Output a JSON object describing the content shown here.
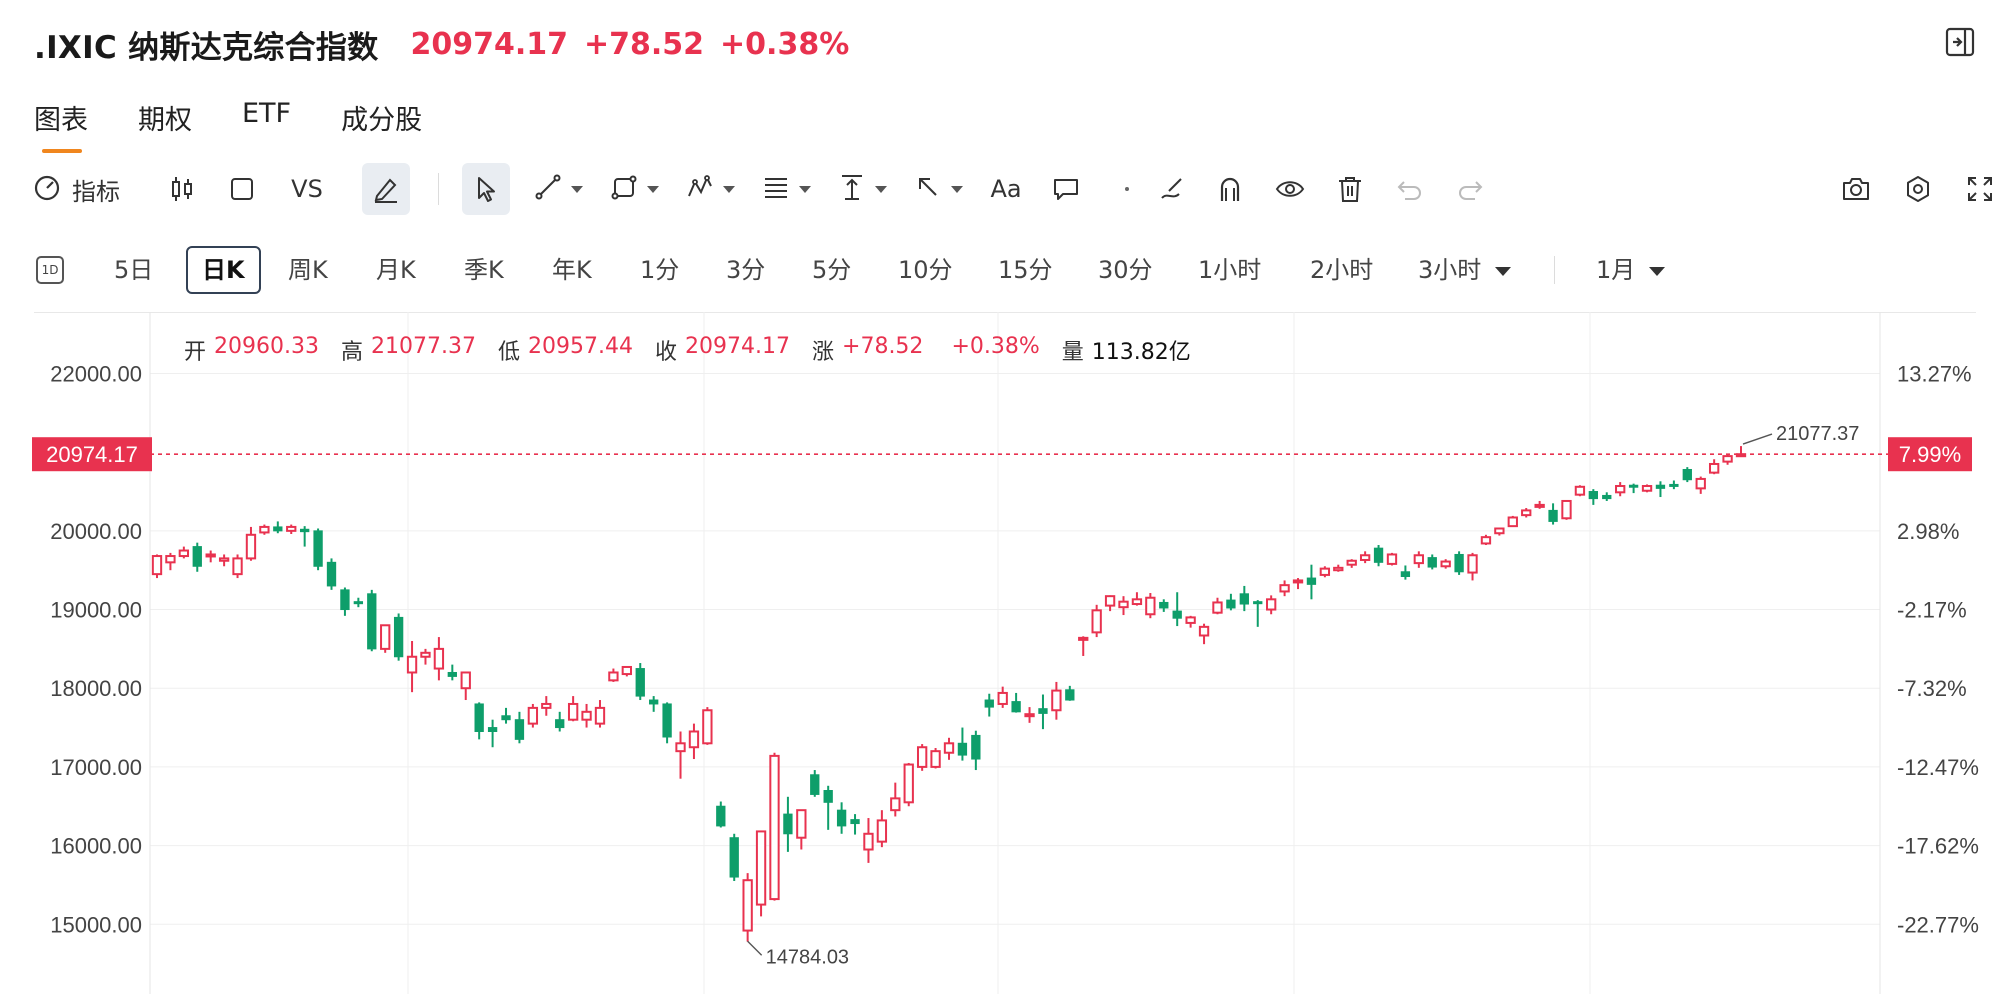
{
  "header": {
    "title": ".IXIC 纳斯达克综合指数",
    "price": "20974.17",
    "change": "+78.52",
    "change_pct": "+0.38%"
  },
  "tabs": [
    "图表",
    "期权",
    "ETF",
    "成分股"
  ],
  "toolbar": {
    "indicator_label": "指标",
    "vs_label": "VS",
    "text_label": "Aa",
    "icons": [
      "gauge-icon",
      "candlestick-icon",
      "square-icon",
      "pen-icon",
      "cursor-icon",
      "line-icon",
      "shape-icon",
      "pattern-icon",
      "fib-icon",
      "measure-icon",
      "arrow-icon",
      "text-icon",
      "comment-icon",
      "dot-icon",
      "brush-icon",
      "magnet-icon",
      "eye-icon",
      "trash-icon",
      "undo-icon",
      "redo-icon",
      "camera-icon",
      "settings-icon",
      "fullscreen-icon"
    ]
  },
  "periods": {
    "icon": "1D",
    "items": [
      "5日",
      "日K",
      "周K",
      "月K",
      "季K",
      "年K",
      "1分",
      "3分",
      "5分",
      "10分",
      "15分",
      "30分",
      "1小时",
      "2小时",
      "3小时"
    ],
    "active": "日K",
    "range": "1月"
  },
  "ohlc": {
    "open_label": "开",
    "open": "20960.33",
    "high_label": "高",
    "high": "21077.37",
    "low_label": "低",
    "low": "20957.44",
    "close_label": "收",
    "close": "20974.17",
    "chg_label": "涨",
    "chg": "+78.52",
    "chg_pct": "+0.38%",
    "vol_label": "量",
    "vol": "113.82亿"
  },
  "colors": {
    "up": "#e8324f",
    "down": "#0e9e6a",
    "accent": "#f0861e",
    "price_tag": "#e8324f"
  },
  "chart_data": {
    "type": "candlestick",
    "y_ticks_left": [
      "22000.00",
      "20000.00",
      "19000.00",
      "18000.00",
      "17000.00",
      "16000.00",
      "15000.00"
    ],
    "y_ticks_right": [
      "13.27%",
      "2.98%",
      "-2.17%",
      "-7.32%",
      "-12.47%",
      "-17.62%",
      "-22.77%"
    ],
    "y_tick_values": [
      22000,
      20000,
      19000,
      18000,
      17000,
      16000,
      15000
    ],
    "ylim": [
      14400,
      22400
    ],
    "current_price_label": "20974.17",
    "current_price": 20974.17,
    "current_pct_label": "7.99%",
    "max_label": "21077.37",
    "max_value": 21077.37,
    "min_label": "14784.03",
    "min_value": 14784.03,
    "candles": [
      [
        19450,
        19700,
        19400,
        19680
      ],
      [
        19600,
        19720,
        19500,
        19680
      ],
      [
        19680,
        19800,
        19650,
        19750
      ],
      [
        19800,
        19850,
        19480,
        19550
      ],
      [
        19680,
        19750,
        19600,
        19700
      ],
      [
        19620,
        19700,
        19550,
        19650
      ],
      [
        19450,
        19700,
        19400,
        19650
      ],
      [
        19650,
        20050,
        19620,
        19950
      ],
      [
        19980,
        20080,
        19950,
        20050
      ],
      [
        20050,
        20120,
        19970,
        20000
      ],
      [
        20000,
        20080,
        19960,
        20050
      ],
      [
        20020,
        20060,
        19800,
        19990
      ],
      [
        20000,
        20030,
        19500,
        19550
      ],
      [
        19600,
        19650,
        19250,
        19300
      ],
      [
        19250,
        19280,
        18920,
        19000
      ],
      [
        19100,
        19150,
        19030,
        19080
      ],
      [
        19200,
        19250,
        18470,
        18500
      ],
      [
        18500,
        18800,
        18450,
        18800
      ],
      [
        18900,
        18950,
        18350,
        18400
      ],
      [
        18200,
        18600,
        17950,
        18400
      ],
      [
        18400,
        18500,
        18300,
        18450
      ],
      [
        18250,
        18650,
        18100,
        18500
      ],
      [
        18200,
        18300,
        18100,
        18150
      ],
      [
        18000,
        18200,
        17850,
        18200
      ],
      [
        17800,
        17820,
        17350,
        17450
      ],
      [
        17500,
        17600,
        17250,
        17450
      ],
      [
        17650,
        17750,
        17550,
        17600
      ],
      [
        17600,
        17700,
        17300,
        17350
      ],
      [
        17550,
        17800,
        17500,
        17750
      ],
      [
        17750,
        17900,
        17650,
        17800
      ],
      [
        17600,
        17700,
        17450,
        17500
      ],
      [
        17600,
        17900,
        17580,
        17800
      ],
      [
        17600,
        17800,
        17500,
        17700
      ],
      [
        17550,
        17850,
        17500,
        17750
      ],
      [
        18100,
        18250,
        18080,
        18200
      ],
      [
        18180,
        18280,
        18150,
        18270
      ],
      [
        18250,
        18320,
        17850,
        17900
      ],
      [
        17850,
        17900,
        17700,
        17800
      ],
      [
        17800,
        17820,
        17300,
        17380
      ],
      [
        17200,
        17450,
        16850,
        17300
      ],
      [
        17250,
        17550,
        17100,
        17450
      ],
      [
        17300,
        17760,
        17280,
        17720
      ],
      [
        16500,
        16560,
        16230,
        16250
      ],
      [
        16100,
        16150,
        15550,
        15600
      ],
      [
        14920,
        15650,
        14780,
        15560
      ],
      [
        15250,
        16180,
        15100,
        16180
      ],
      [
        15320,
        17180,
        15300,
        17140
      ],
      [
        16400,
        16620,
        15920,
        16150
      ],
      [
        16100,
        16450,
        15950,
        16450
      ],
      [
        16900,
        16960,
        16620,
        16650
      ],
      [
        16700,
        16760,
        16200,
        16550
      ],
      [
        16450,
        16550,
        16150,
        16250
      ],
      [
        16330,
        16400,
        16140,
        16280
      ],
      [
        15950,
        16350,
        15780,
        16150
      ],
      [
        16050,
        16450,
        15980,
        16320
      ],
      [
        16450,
        16800,
        16370,
        16600
      ],
      [
        16550,
        17050,
        16500,
        17030
      ],
      [
        17000,
        17290,
        16950,
        17250
      ],
      [
        17000,
        17240,
        16980,
        17200
      ],
      [
        17180,
        17370,
        17090,
        17300
      ],
      [
        17300,
        17500,
        17080,
        17150
      ],
      [
        17400,
        17460,
        16960,
        17100
      ],
      [
        17850,
        17930,
        17640,
        17760
      ],
      [
        17800,
        18020,
        17750,
        17940
      ],
      [
        17830,
        17940,
        17690,
        17700
      ],
      [
        17650,
        17760,
        17560,
        17670
      ],
      [
        17740,
        17920,
        17480,
        17680
      ],
      [
        17720,
        18080,
        17600,
        17970
      ],
      [
        17980,
        18030,
        17840,
        17850
      ],
      [
        18630,
        18660,
        18410,
        18640
      ],
      [
        18710,
        19060,
        18650,
        18990
      ],
      [
        19050,
        19180,
        18980,
        19170
      ],
      [
        19030,
        19170,
        18930,
        19100
      ],
      [
        19070,
        19220,
        19050,
        19130
      ],
      [
        18940,
        19210,
        18890,
        19150
      ],
      [
        19090,
        19130,
        18970,
        19020
      ],
      [
        18980,
        19220,
        18790,
        18890
      ],
      [
        18830,
        18920,
        18770,
        18900
      ],
      [
        18670,
        18820,
        18560,
        18780
      ],
      [
        18960,
        19150,
        18940,
        19090
      ],
      [
        19120,
        19200,
        18990,
        19020
      ],
      [
        19200,
        19300,
        18980,
        19070
      ],
      [
        19100,
        19120,
        18780,
        19080
      ],
      [
        19000,
        19180,
        18940,
        19130
      ],
      [
        19230,
        19370,
        19170,
        19310
      ],
      [
        19350,
        19400,
        19260,
        19370
      ],
      [
        19400,
        19570,
        19130,
        19320
      ],
      [
        19440,
        19550,
        19410,
        19520
      ],
      [
        19500,
        19570,
        19480,
        19530
      ],
      [
        19570,
        19640,
        19530,
        19620
      ],
      [
        19630,
        19740,
        19590,
        19690
      ],
      [
        19780,
        19820,
        19550,
        19600
      ],
      [
        19580,
        19720,
        19560,
        19700
      ],
      [
        19480,
        19560,
        19380,
        19420
      ],
      [
        19590,
        19740,
        19530,
        19690
      ],
      [
        19660,
        19700,
        19510,
        19540
      ],
      [
        19550,
        19640,
        19520,
        19610
      ],
      [
        19700,
        19740,
        19440,
        19480
      ],
      [
        19470,
        19720,
        19370,
        19690
      ],
      [
        19840,
        19950,
        19820,
        19920
      ],
      [
        19970,
        20040,
        19940,
        20030
      ],
      [
        20060,
        20190,
        20050,
        20170
      ],
      [
        20200,
        20290,
        20170,
        20260
      ],
      [
        20310,
        20380,
        20280,
        20330
      ],
      [
        20260,
        20350,
        20080,
        20120
      ],
      [
        20160,
        20390,
        20140,
        20380
      ],
      [
        20460,
        20580,
        20440,
        20560
      ],
      [
        20500,
        20530,
        20330,
        20410
      ],
      [
        20450,
        20490,
        20380,
        20410
      ],
      [
        20490,
        20620,
        20440,
        20570
      ],
      [
        20580,
        20600,
        20480,
        20560
      ],
      [
        20510,
        20590,
        20490,
        20570
      ],
      [
        20580,
        20630,
        20430,
        20540
      ],
      [
        20590,
        20640,
        20530,
        20580
      ],
      [
        20780,
        20810,
        20620,
        20650
      ],
      [
        20540,
        20690,
        20470,
        20660
      ],
      [
        20740,
        20910,
        20720,
        20850
      ],
      [
        20880,
        20970,
        20840,
        20950
      ],
      [
        20960.33,
        21077.37,
        20957.44,
        20974.17
      ]
    ]
  }
}
